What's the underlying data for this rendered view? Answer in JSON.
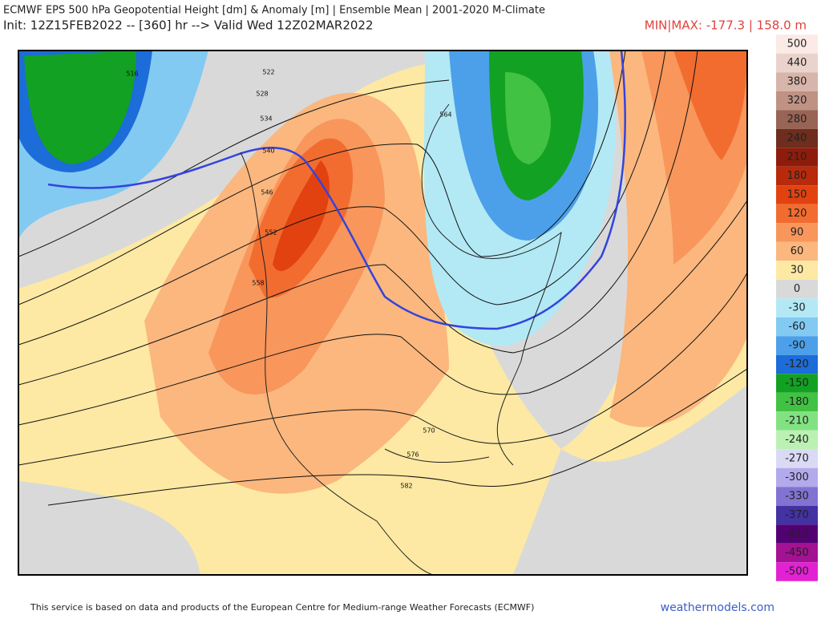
{
  "header": {
    "title": "ECMWF EPS 500 hPa Geopotential Height [dm] & Anomaly [m] | Ensemble Mean | 2001-2020 M-Climate",
    "init": "Init: 12Z15FEB2022 -- [360] hr --> Valid Wed 12Z02MAR2022",
    "minmax": "MIN|MAX: -177.3 | 158.0 m"
  },
  "colorbar": {
    "values": [
      500,
      440,
      380,
      320,
      280,
      240,
      210,
      180,
      150,
      120,
      90,
      60,
      30,
      0,
      -30,
      -60,
      -90,
      -120,
      -150,
      -180,
      -210,
      -240,
      -270,
      -300,
      -330,
      -370,
      -410,
      -450,
      -500
    ],
    "colors": [
      "#fbeae6",
      "#ead3cc",
      "#d7b5aa",
      "#bf9283",
      "#986455",
      "#6e2d1d",
      "#8e1c0c",
      "#b82a0b",
      "#e2420f",
      "#f26c30",
      "#f8965b",
      "#fbb77e",
      "#fde9a3",
      "#d9d9d9",
      "#b3e9f5",
      "#82caf1",
      "#4ca0e9",
      "#1c6cd9",
      "#12a123",
      "#42c242",
      "#82e282",
      "#bbf1b3",
      "#dadaf5",
      "#b2aaea",
      "#8272d2",
      "#4232a2",
      "#520072",
      "#a21292",
      "#e222d2"
    ]
  },
  "map": {
    "contour_labels": [
      516,
      522,
      528,
      534,
      540,
      546,
      552,
      558,
      564,
      570,
      576,
      582
    ]
  },
  "footer": {
    "credit": "This service is based on data and products of the European Centre for Medium-range Weather Forecasts (ECMWF)",
    "site": "weathermodels.com"
  }
}
